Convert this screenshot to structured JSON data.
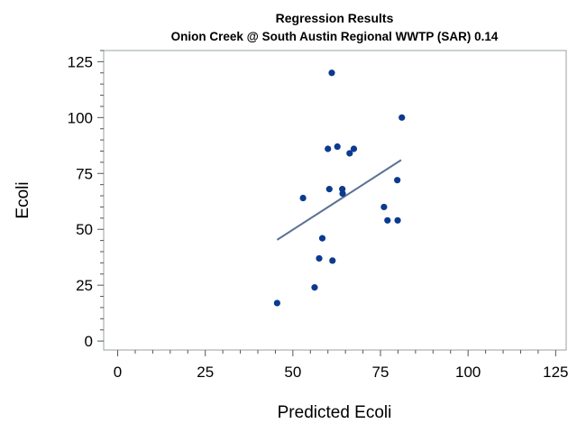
{
  "chart_data": {
    "type": "scatter",
    "title": "Regression Results",
    "subtitle": "Onion Creek @ South Austin Regional WWTP (SAR) 0.14",
    "xlabel": "Predicted Ecoli",
    "ylabel": "Ecoli",
    "xlim": [
      -4,
      128
    ],
    "ylim": [
      -4,
      130
    ],
    "x_ticks": [
      0,
      25,
      50,
      75,
      100,
      125
    ],
    "y_ticks": [
      0,
      25,
      50,
      75,
      100,
      125
    ],
    "x_minor_step": 5,
    "y_minor_step": 5,
    "grid": false,
    "point_color": "#0b3a8f",
    "line_color": "#5b7393",
    "points": [
      {
        "x": 45.5,
        "y": 17
      },
      {
        "x": 52.9,
        "y": 64
      },
      {
        "x": 56.2,
        "y": 24
      },
      {
        "x": 57.5,
        "y": 37
      },
      {
        "x": 58.4,
        "y": 46
      },
      {
        "x": 60.0,
        "y": 86
      },
      {
        "x": 60.4,
        "y": 68
      },
      {
        "x": 61.1,
        "y": 120
      },
      {
        "x": 61.3,
        "y": 36
      },
      {
        "x": 62.7,
        "y": 87
      },
      {
        "x": 64.1,
        "y": 68
      },
      {
        "x": 64.2,
        "y": 66
      },
      {
        "x": 66.2,
        "y": 84
      },
      {
        "x": 67.4,
        "y": 86
      },
      {
        "x": 76.0,
        "y": 60
      },
      {
        "x": 77.0,
        "y": 54
      },
      {
        "x": 79.8,
        "y": 72
      },
      {
        "x": 79.9,
        "y": 54
      },
      {
        "x": 81.1,
        "y": 100
      }
    ],
    "fit_line": {
      "x": [
        45.5,
        80.9
      ],
      "y": [
        45.3,
        81
      ]
    }
  }
}
